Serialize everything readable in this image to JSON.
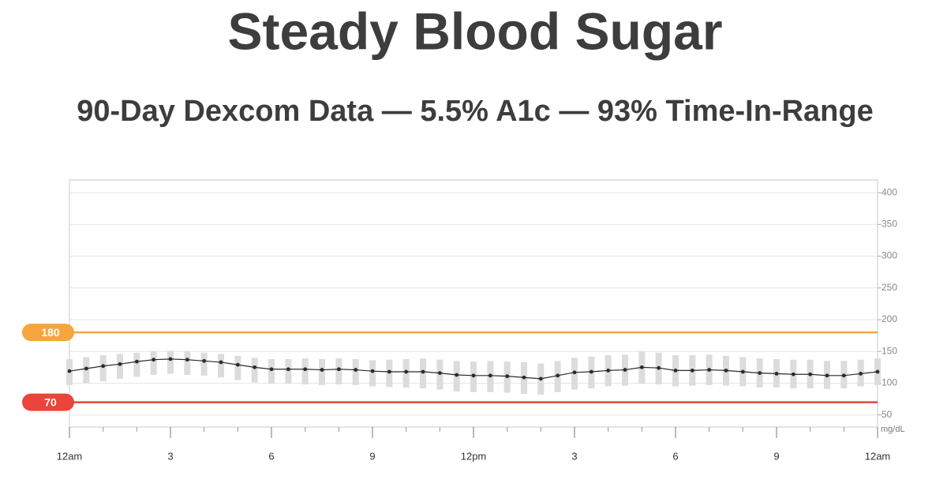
{
  "chart_data": {
    "type": "line",
    "title": "Steady Blood Sugar",
    "subtitle": "90-Day Dexcom Data — 5.5% A1c — 93% Time-In-Range",
    "y_unit": "mg/dL",
    "x": [
      0,
      0.5,
      1,
      1.5,
      2,
      2.5,
      3,
      3.5,
      4,
      4.5,
      5,
      5.5,
      6,
      6.5,
      7,
      7.5,
      8,
      8.5,
      9,
      9.5,
      10,
      10.5,
      11,
      11.5,
      12,
      12.5,
      13,
      13.5,
      14,
      14.5,
      15,
      15.5,
      16,
      16.5,
      17,
      17.5,
      18,
      18.5,
      19,
      19.5,
      20,
      20.5,
      21,
      21.5,
      22,
      22.5,
      23,
      23.5,
      24
    ],
    "series": [
      {
        "color": "#2b2b2b",
        "values": [
          119,
          123,
          127,
          130,
          134,
          137,
          138,
          137,
          135,
          133,
          129,
          125,
          122,
          122,
          122,
          121,
          122,
          121,
          119,
          118,
          118,
          118,
          116,
          113,
          112,
          112,
          111,
          109,
          107,
          112,
          117,
          118,
          120,
          121,
          125,
          124,
          120,
          120,
          121,
          120,
          118,
          116,
          115,
          114,
          114,
          112,
          112,
          115,
          118
        ]
      }
    ],
    "bands": {
      "color": "#dcdcdc",
      "low": [
        97,
        100,
        103,
        107,
        110,
        113,
        115,
        113,
        112,
        109,
        105,
        101,
        99,
        99,
        98,
        97,
        98,
        97,
        95,
        94,
        93,
        92,
        90,
        87,
        86,
        86,
        85,
        83,
        82,
        86,
        90,
        92,
        95,
        96,
        99,
        98,
        95,
        96,
        97,
        96,
        95,
        93,
        93,
        92,
        92,
        91,
        92,
        95,
        97
      ],
      "high": [
        138,
        141,
        144,
        146,
        148,
        150,
        151,
        150,
        148,
        146,
        143,
        140,
        138,
        138,
        139,
        138,
        139,
        138,
        136,
        137,
        138,
        139,
        137,
        135,
        134,
        135,
        134,
        133,
        131,
        135,
        140,
        142,
        144,
        145,
        150,
        148,
        144,
        144,
        145,
        143,
        141,
        139,
        138,
        137,
        137,
        135,
        135,
        137,
        139
      ]
    },
    "target_lines": [
      {
        "value": 180,
        "color": "#f5a63c"
      },
      {
        "value": 70,
        "color": "#e9453a"
      }
    ],
    "xlim": [
      0,
      24
    ],
    "xticks": [
      {
        "value": 0,
        "label": "12am"
      },
      3,
      6,
      9,
      {
        "value": 12,
        "label": "12pm"
      },
      {
        "value": 15,
        "label": "3"
      },
      {
        "value": 18,
        "label": "6"
      },
      {
        "value": 21,
        "label": "9"
      },
      {
        "value": 24,
        "label": "12am"
      }
    ],
    "xminorticks": [
      1,
      2,
      4,
      5,
      7,
      8,
      10,
      11,
      13,
      14,
      16,
      17,
      19,
      20,
      22,
      23
    ],
    "ylim": [
      31,
      420
    ],
    "yticks": [
      50,
      100,
      150,
      200,
      250,
      300,
      350,
      400
    ],
    "grid": true
  }
}
